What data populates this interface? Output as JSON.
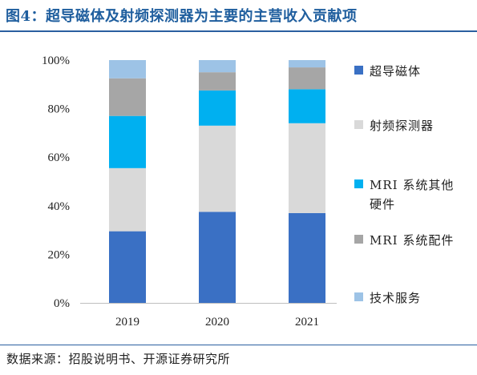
{
  "header": {
    "title": "图4：超导磁体及射频探测器为主要的主营收入贡献项"
  },
  "footer": {
    "source": "数据来源：招股说明书、开源证券研究所"
  },
  "chart_data": {
    "type": "bar",
    "stacked": true,
    "categories": [
      "2019",
      "2020",
      "2021"
    ],
    "ylim": [
      0,
      100
    ],
    "yticks": [
      "0%",
      "20%",
      "40%",
      "60%",
      "80%",
      "100%"
    ],
    "legend_position": "right",
    "series": [
      {
        "name": "超导磁体",
        "color": "#3a70c4",
        "values": [
          29.5,
          37.5,
          37.0
        ]
      },
      {
        "name": "射频探测器",
        "color": "#d9d9d9",
        "values": [
          26.0,
          35.5,
          37.0
        ]
      },
      {
        "name": "MRI 系统其他硬件",
        "color": "#00b0f0",
        "values": [
          21.5,
          14.5,
          14.0
        ]
      },
      {
        "name": "MRI 系统配件",
        "color": "#a6a6a6",
        "values": [
          15.5,
          7.5,
          9.0
        ]
      },
      {
        "name": "技术服务",
        "color": "#9dc3e6",
        "values": [
          7.5,
          5.0,
          3.0
        ]
      }
    ]
  }
}
